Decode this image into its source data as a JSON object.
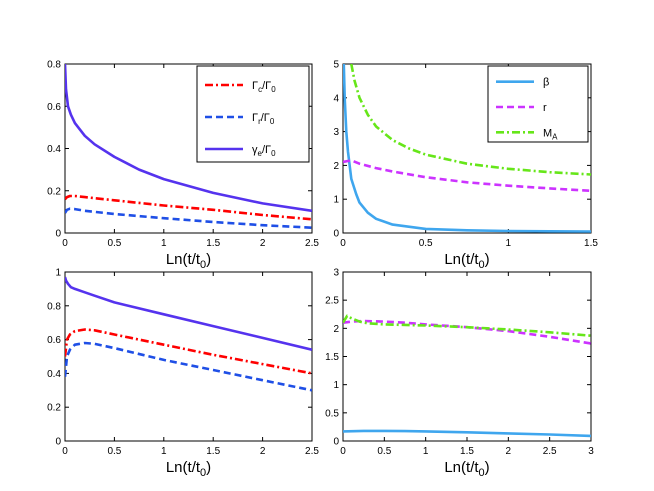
{
  "colors": {
    "red": "#ff0000",
    "blue": "#1f4fe6",
    "purple": "#5533ee",
    "lightblue": "#3fa6ee",
    "magenta": "#cc33ff",
    "green": "#66e619"
  },
  "chart_data": [
    {
      "id": "top-left",
      "type": "line",
      "xlabel": {
        "main": "Ln(t/t",
        "sub": "0",
        "close": ")"
      },
      "xlim": [
        0,
        2.5
      ],
      "ylim": [
        0,
        0.8
      ],
      "xticks": [
        0,
        0.5,
        1,
        1.5,
        2,
        2.5
      ],
      "xtick_labels": [
        "0",
        "0.5",
        "1",
        "1.5",
        "2",
        "2.5"
      ],
      "yticks": [
        0,
        0.2,
        0.4,
        0.6,
        0.8
      ],
      "ytick_labels": [
        "0",
        "0.2",
        "0.4",
        "0.6",
        "0.8"
      ],
      "legend_position": "top-right",
      "series": [
        {
          "name": "Γc/Γ0",
          "label": {
            "sym": "Γ",
            "sub": "c",
            "mid": "/Γ",
            "sub2": "0"
          },
          "color": "red",
          "style": "dashdot",
          "x": [
            0,
            0.02,
            0.05,
            0.1,
            0.2,
            0.5,
            1.0,
            1.5,
            2.0,
            2.5
          ],
          "y": [
            0.16,
            0.17,
            0.175,
            0.175,
            0.17,
            0.155,
            0.13,
            0.11,
            0.085,
            0.065
          ]
        },
        {
          "name": "Γr/Γ0",
          "label": {
            "sym": "Γ",
            "sub": "r",
            "mid": "/Γ",
            "sub2": "0"
          },
          "color": "blue",
          "style": "dashed",
          "x": [
            0,
            0.02,
            0.05,
            0.1,
            0.2,
            0.5,
            1.0,
            1.5,
            2.0,
            2.5
          ],
          "y": [
            0.095,
            0.11,
            0.115,
            0.113,
            0.105,
            0.09,
            0.07,
            0.052,
            0.037,
            0.025
          ]
        },
        {
          "name": "γe/Γ0",
          "label": {
            "sym": "γ",
            "sub": "e",
            "mid": "/Γ",
            "sub2": "0"
          },
          "color": "purple",
          "style": "solid",
          "x": [
            0,
            0.01,
            0.03,
            0.06,
            0.1,
            0.2,
            0.3,
            0.5,
            0.75,
            1.0,
            1.5,
            2.0,
            2.5
          ],
          "y": [
            0.8,
            0.68,
            0.6,
            0.56,
            0.52,
            0.46,
            0.42,
            0.36,
            0.3,
            0.255,
            0.19,
            0.14,
            0.105
          ]
        }
      ]
    },
    {
      "id": "top-right",
      "type": "line",
      "xlabel": {
        "main": "Ln(t/t",
        "sub": "0",
        "close": ")"
      },
      "xlim": [
        0,
        1.5
      ],
      "ylim": [
        0,
        5
      ],
      "xticks": [
        0,
        0.5,
        1,
        1.5
      ],
      "xtick_labels": [
        "0",
        "0.5",
        "1",
        "1.5"
      ],
      "yticks": [
        0,
        1,
        2,
        3,
        4,
        5
      ],
      "ytick_labels": [
        "0",
        "1",
        "2",
        "3",
        "4",
        "5"
      ],
      "legend_position": "top-right",
      "series": [
        {
          "name": "β",
          "label": {
            "sym": "β",
            "sub": "",
            "mid": "",
            "sub2": ""
          },
          "color": "lightblue",
          "style": "solid",
          "x": [
            0.005,
            0.01,
            0.02,
            0.03,
            0.05,
            0.08,
            0.1,
            0.15,
            0.2,
            0.3,
            0.5,
            0.75,
            1.0,
            1.25,
            1.5
          ],
          "y": [
            5.0,
            4.0,
            3.0,
            2.4,
            1.6,
            1.15,
            0.9,
            0.6,
            0.42,
            0.25,
            0.12,
            0.08,
            0.06,
            0.05,
            0.045
          ]
        },
        {
          "name": "r",
          "label": {
            "sym": "r",
            "sub": "",
            "mid": "",
            "sub2": ""
          },
          "color": "magenta",
          "style": "dashed",
          "x": [
            0,
            0.05,
            0.1,
            0.2,
            0.3,
            0.5,
            0.75,
            1.0,
            1.25,
            1.5
          ],
          "y": [
            2.1,
            2.15,
            2.05,
            1.92,
            1.82,
            1.65,
            1.5,
            1.4,
            1.32,
            1.25
          ]
        },
        {
          "name": "MA",
          "label": {
            "sym": "M",
            "sub": "A",
            "mid": "",
            "sub2": ""
          },
          "color": "green",
          "style": "dashdot",
          "x": [
            0.05,
            0.07,
            0.1,
            0.15,
            0.2,
            0.3,
            0.4,
            0.5,
            0.75,
            1.0,
            1.25,
            1.5
          ],
          "y": [
            5.0,
            4.5,
            4.0,
            3.5,
            3.15,
            2.75,
            2.5,
            2.32,
            2.05,
            1.9,
            1.8,
            1.73
          ]
        }
      ]
    },
    {
      "id": "bottom-left",
      "type": "line",
      "xlabel": {
        "main": "Ln(t/t",
        "sub": "0",
        "close": ")"
      },
      "xlim": [
        0,
        2.5
      ],
      "ylim": [
        0,
        1
      ],
      "xticks": [
        0,
        0.5,
        1,
        1.5,
        2,
        2.5
      ],
      "xtick_labels": [
        "0",
        "0.5",
        "1",
        "1.5",
        "2",
        "2.5"
      ],
      "yticks": [
        0,
        0.2,
        0.4,
        0.6,
        0.8,
        1
      ],
      "ytick_labels": [
        "0",
        "0.2",
        "0.4",
        "0.6",
        "0.8",
        "1"
      ],
      "legend_position": "none",
      "series": [
        {
          "name": "Γc/Γ0",
          "color": "red",
          "style": "dashdot",
          "x": [
            0,
            0.02,
            0.05,
            0.1,
            0.2,
            0.3,
            0.5,
            1.0,
            1.5,
            2.0,
            2.5
          ],
          "y": [
            0.5,
            0.6,
            0.63,
            0.65,
            0.66,
            0.655,
            0.63,
            0.57,
            0.51,
            0.455,
            0.4
          ]
        },
        {
          "name": "Γr/Γ0",
          "color": "blue",
          "style": "dashed",
          "x": [
            0,
            0.02,
            0.05,
            0.1,
            0.2,
            0.3,
            0.5,
            1.0,
            1.5,
            2.0,
            2.5
          ],
          "y": [
            0.38,
            0.5,
            0.54,
            0.57,
            0.58,
            0.575,
            0.55,
            0.48,
            0.42,
            0.36,
            0.3
          ]
        },
        {
          "name": "γe/Γ0",
          "color": "purple",
          "style": "solid",
          "x": [
            0,
            0.01,
            0.03,
            0.06,
            0.1,
            0.2,
            0.3,
            0.5,
            1.0,
            1.5,
            2.0,
            2.5
          ],
          "y": [
            0.97,
            0.95,
            0.93,
            0.91,
            0.9,
            0.88,
            0.86,
            0.82,
            0.75,
            0.68,
            0.61,
            0.54
          ]
        }
      ]
    },
    {
      "id": "bottom-right",
      "type": "line",
      "xlabel": {
        "main": "Ln(t/t",
        "sub": "0",
        "close": ")"
      },
      "xlim": [
        0,
        3
      ],
      "ylim": [
        0,
        3
      ],
      "xticks": [
        0,
        0.5,
        1,
        1.5,
        2,
        2.5,
        3
      ],
      "xtick_labels": [
        "0",
        "0.5",
        "1",
        "1.5",
        "2",
        "2.5",
        "3"
      ],
      "yticks": [
        0,
        0.5,
        1,
        1.5,
        2,
        2.5,
        3
      ],
      "ytick_labels": [
        "0",
        "0.5",
        "1",
        "1.5",
        "2",
        "2.5",
        "3"
      ],
      "legend_position": "none",
      "series": [
        {
          "name": "β",
          "color": "lightblue",
          "style": "solid",
          "x": [
            0,
            0.25,
            0.5,
            0.75,
            1.0,
            1.5,
            2.0,
            2.5,
            3.0
          ],
          "y": [
            0.17,
            0.18,
            0.18,
            0.175,
            0.17,
            0.155,
            0.135,
            0.115,
            0.09
          ]
        },
        {
          "name": "r",
          "color": "magenta",
          "style": "dashed",
          "x": [
            0,
            0.1,
            0.25,
            0.5,
            0.75,
            1.0,
            1.5,
            2.0,
            2.5,
            3.0
          ],
          "y": [
            2.1,
            2.12,
            2.13,
            2.12,
            2.1,
            2.07,
            2.02,
            1.95,
            1.85,
            1.73
          ]
        },
        {
          "name": "MA",
          "color": "green",
          "style": "dashdot",
          "x": [
            0,
            0.05,
            0.1,
            0.2,
            0.3,
            0.5,
            1.0,
            1.5,
            2.0,
            2.5,
            3.0
          ],
          "y": [
            2.1,
            2.22,
            2.18,
            2.12,
            2.09,
            2.07,
            2.05,
            2.02,
            1.98,
            1.93,
            1.87
          ]
        }
      ]
    }
  ]
}
